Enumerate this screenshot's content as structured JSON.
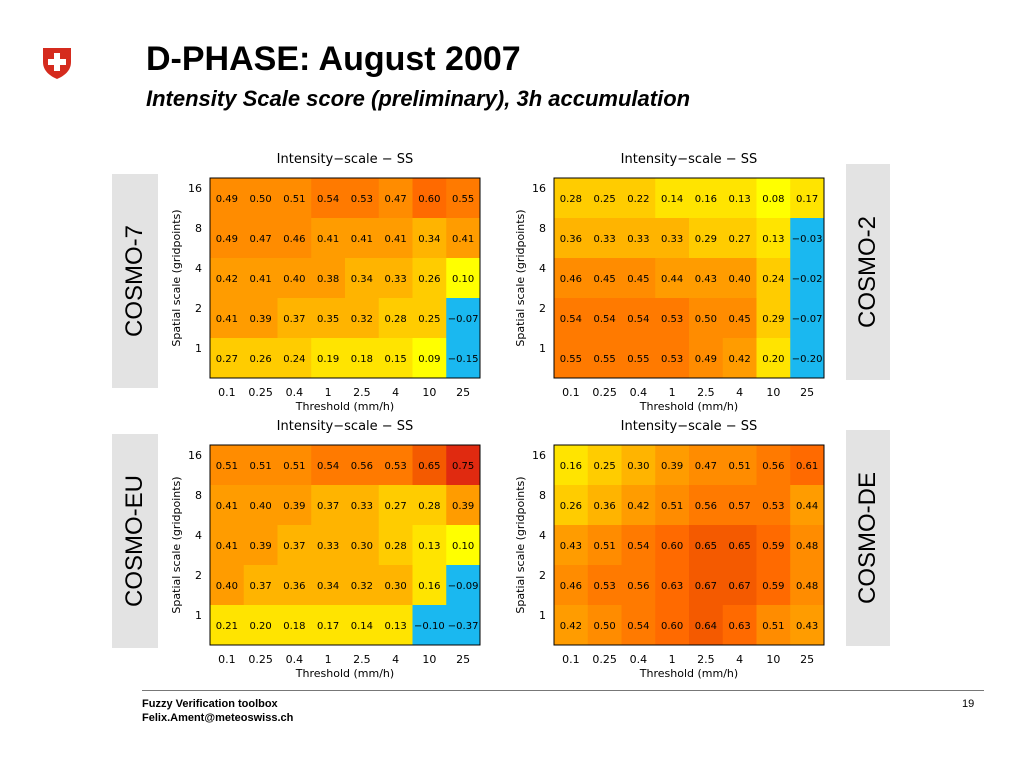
{
  "slide": {
    "title": "D-PHASE: August 2007",
    "subtitle": "Intensity Scale score (preliminary), 3h accumulation",
    "footer_line1": "Fuzzy Verification toolbox",
    "footer_line2": "Felix.Ament@meteoswiss.ch",
    "page_number": "19",
    "logo": "swiss-cross-shield-icon",
    "colors": {
      "logo_red": "#d52b1e",
      "label_bg": "#e3e3e3",
      "footer_line": "#777777"
    }
  },
  "chart_data": [
    {
      "type": "heatmap",
      "model": "COSMO-7",
      "title": "Intensity−scale − SS",
      "xlabel": "Threshold (mm/h)",
      "ylabel": "Spatial scale (gridpoints)",
      "x": [
        "0.1",
        "0.25",
        "0.4",
        "1",
        "2.5",
        "4",
        "10",
        "25"
      ],
      "y": [
        "16",
        "8",
        "4",
        "2",
        "1"
      ],
      "values": [
        [
          "0.49",
          "0.50",
          "0.51",
          "0.54",
          "0.53",
          "0.47",
          "0.60",
          "0.55"
        ],
        [
          "0.49",
          "0.47",
          "0.46",
          "0.41",
          "0.41",
          "0.41",
          "0.34",
          "0.41"
        ],
        [
          "0.42",
          "0.41",
          "0.40",
          "0.38",
          "0.34",
          "0.33",
          "0.26",
          "0.10"
        ],
        [
          "0.41",
          "0.39",
          "0.37",
          "0.35",
          "0.32",
          "0.28",
          "0.25",
          "−0.07"
        ],
        [
          "0.27",
          "0.26",
          "0.24",
          "0.19",
          "0.18",
          "0.15",
          "0.09",
          "−0.15"
        ]
      ]
    },
    {
      "type": "heatmap",
      "model": "COSMO-2",
      "title": "Intensity−scale − SS",
      "xlabel": "Threshold (mm/h)",
      "ylabel": "Spatial scale (gridpoints)",
      "x": [
        "0.1",
        "0.25",
        "0.4",
        "1",
        "2.5",
        "4",
        "10",
        "25"
      ],
      "y": [
        "16",
        "8",
        "4",
        "2",
        "1"
      ],
      "values": [
        [
          "0.28",
          "0.25",
          "0.22",
          "0.14",
          "0.16",
          "0.13",
          "0.08",
          "0.17"
        ],
        [
          "0.36",
          "0.33",
          "0.33",
          "0.33",
          "0.29",
          "0.27",
          "0.13",
          "−0.03"
        ],
        [
          "0.46",
          "0.45",
          "0.45",
          "0.44",
          "0.43",
          "0.40",
          "0.24",
          "−0.02"
        ],
        [
          "0.54",
          "0.54",
          "0.54",
          "0.53",
          "0.50",
          "0.45",
          "0.29",
          "−0.07"
        ],
        [
          "0.55",
          "0.55",
          "0.55",
          "0.53",
          "0.49",
          "0.42",
          "0.20",
          "−0.20"
        ]
      ]
    },
    {
      "type": "heatmap",
      "model": "COSMO-EU",
      "title": "Intensity−scale − SS",
      "xlabel": "Threshold (mm/h)",
      "ylabel": "Spatial scale (gridpoints)",
      "x": [
        "0.1",
        "0.25",
        "0.4",
        "1",
        "2.5",
        "4",
        "10",
        "25"
      ],
      "y": [
        "16",
        "8",
        "4",
        "2",
        "1"
      ],
      "values": [
        [
          "0.51",
          "0.51",
          "0.51",
          "0.54",
          "0.56",
          "0.53",
          "0.65",
          "0.75"
        ],
        [
          "0.41",
          "0.40",
          "0.39",
          "0.37",
          "0.33",
          "0.27",
          "0.28",
          "0.39"
        ],
        [
          "0.41",
          "0.39",
          "0.37",
          "0.33",
          "0.30",
          "0.28",
          "0.13",
          "0.10"
        ],
        [
          "0.40",
          "0.37",
          "0.36",
          "0.34",
          "0.32",
          "0.30",
          "0.16",
          "−0.09"
        ],
        [
          "0.21",
          "0.20",
          "0.18",
          "0.17",
          "0.14",
          "0.13",
          "−0.10",
          "−0.37"
        ]
      ]
    },
    {
      "type": "heatmap",
      "model": "COSMO-DE",
      "title": "Intensity−scale − SS",
      "xlabel": "Threshold (mm/h)",
      "ylabel": "Spatial scale (gridpoints)",
      "x": [
        "0.1",
        "0.25",
        "0.4",
        "1",
        "2.5",
        "4",
        "10",
        "25"
      ],
      "y": [
        "16",
        "8",
        "4",
        "2",
        "1"
      ],
      "values": [
        [
          "0.16",
          "0.25",
          "0.30",
          "0.39",
          "0.47",
          "0.51",
          "0.56",
          "0.61"
        ],
        [
          "0.26",
          "0.36",
          "0.42",
          "0.51",
          "0.56",
          "0.57",
          "0.53",
          "0.44"
        ],
        [
          "0.43",
          "0.51",
          "0.54",
          "0.60",
          "0.65",
          "0.65",
          "0.59",
          "0.48"
        ],
        [
          "0.46",
          "0.53",
          "0.56",
          "0.63",
          "0.67",
          "0.67",
          "0.59",
          "0.48"
        ],
        [
          "0.42",
          "0.50",
          "0.54",
          "0.60",
          "0.64",
          "0.63",
          "0.51",
          "0.43"
        ]
      ]
    }
  ]
}
